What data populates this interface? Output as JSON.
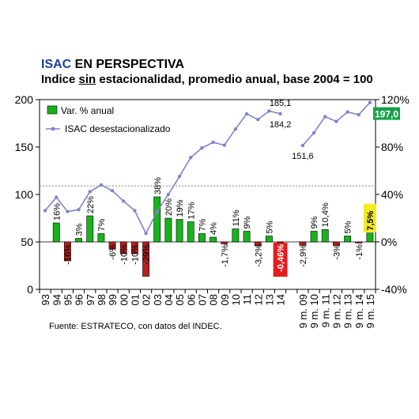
{
  "title": {
    "prefix": "ISAC",
    "rest": " EN PERSPECTIVA"
  },
  "subtitle": {
    "before": "Indice ",
    "underlined": "sin",
    "after": " estacionalidad, promedio anual, base 2004 = 100"
  },
  "source": "Fuente: ESTRATECO, con datos del INDEC.",
  "chart_data": {
    "type": "bar+line",
    "categories": [
      "93",
      "94",
      "95",
      "96",
      "97",
      "98",
      "99",
      "00",
      "01",
      "02",
      "03",
      "04",
      "05",
      "06",
      "07",
      "08",
      "09",
      "10",
      "11",
      "12",
      "13",
      "14",
      "",
      "9 m. 09",
      "9 m. 10",
      "9 m. 11",
      "9 m. 12",
      "9 m. 13",
      "9 m. 14",
      "9 m. 15"
    ],
    "left_axis": {
      "min": 0,
      "max": 200,
      "ticks": [
        "0",
        "50",
        "100",
        "150",
        "200"
      ]
    },
    "right_axis": {
      "min": -40,
      "max": 120,
      "ticks": [
        "-40%",
        "0%",
        "40%",
        "80%",
        "120%"
      ]
    },
    "reference_line": {
      "axis": "left",
      "value": 109
    },
    "legend": {
      "position": "top-left",
      "entries": [
        "Var. % anual",
        "ISAC desestacionalizado"
      ]
    },
    "colors": {
      "positive_bar": "#16b41a",
      "negative_bar": "#b8201f",
      "line": "#7d86c8",
      "highlight_box": "#f3ec1e",
      "badge": "#16a14a"
    },
    "series": [
      {
        "name": "Var. % anual",
        "axis": "right",
        "kind": "bar",
        "values": [
          null,
          16,
          -16,
          3,
          22,
          7,
          -6,
          -10,
          -10,
          -29,
          38,
          20,
          19,
          17,
          7,
          4,
          -1.7,
          11,
          9,
          -3.2,
          5,
          -0.46,
          null,
          -2.9,
          9,
          10.4,
          -3,
          5,
          -1,
          7.5
        ],
        "labels": [
          "",
          "16%",
          "-16%",
          "3%",
          "22%",
          "7%",
          "-6%",
          "-10%",
          "-10%",
          "-29%",
          "38%",
          "20%",
          "19%",
          "17%",
          "7%",
          "4%",
          "-1,7%",
          "11%",
          "9%",
          "-3,2%",
          "5%",
          "-0,46%",
          "",
          "-2,9%",
          "9%",
          "10,4%",
          "-3%",
          "5%",
          "-1%",
          "7,5%"
        ],
        "highlighted_labels": {
          "21": "red-box",
          "29": "yellow-box"
        }
      },
      {
        "name": "ISAC desestacionalizado",
        "axis": "left",
        "kind": "line",
        "segments": [
          {
            "start": 0,
            "values": [
              83,
              97,
              82,
              84,
              103,
              110,
              104,
              93,
              83,
              59,
              82,
              100,
              119,
              139,
              149,
              155,
              152,
              169,
              185,
              179,
              188,
              185.1
            ]
          },
          {
            "start": 23,
            "values": [
              151.6,
              165,
              182,
              177,
              187,
              184,
              197
            ]
          }
        ],
        "annotations": [
          {
            "index": 21,
            "text": "185,1",
            "pos": "above"
          },
          {
            "index": 21,
            "text": "184,2",
            "pos": "below"
          },
          {
            "index": 23,
            "text": "151,6",
            "pos": "below"
          }
        ],
        "end_badge": "197,0"
      }
    ]
  }
}
